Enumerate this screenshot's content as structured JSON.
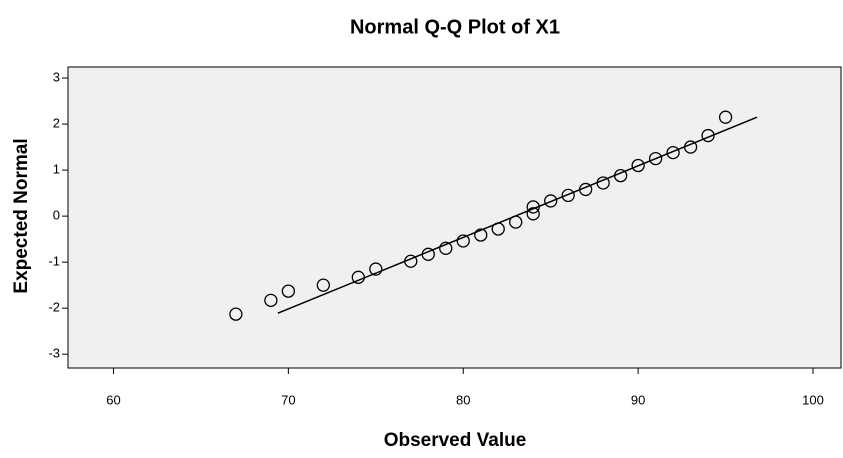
{
  "chart_data": {
    "type": "scatter",
    "title": "Normal Q-Q Plot of X1",
    "x_label": "Observed Value",
    "y_label": "Expected Normal",
    "x": [
      67,
      69,
      70,
      72,
      74,
      75,
      77,
      78,
      79,
      80,
      81,
      82,
      83,
      84,
      84,
      85,
      86,
      87,
      88,
      89,
      90,
      91,
      92,
      93,
      94,
      95
    ],
    "values": [
      -2.13,
      -1.83,
      -1.63,
      -1.5,
      -1.33,
      -1.15,
      -0.98,
      -0.83,
      -0.7,
      -0.54,
      -0.41,
      -0.28,
      -0.13,
      0.05,
      0.2,
      0.33,
      0.45,
      0.58,
      0.72,
      0.88,
      1.1,
      1.25,
      1.38,
      1.5,
      1.75,
      2.15
    ],
    "color": "#000000",
    "reference_line": {
      "x": [
        69.4,
        96.8
      ],
      "y": [
        -2.11,
        2.15
      ]
    },
    "xlim": [
      57.4,
      101.6
    ],
    "xticks": [
      60,
      70,
      80,
      90,
      100
    ],
    "ylim": [
      -3.3,
      3.24
    ],
    "yticks": [
      -3,
      -2,
      -1,
      0,
      1,
      2,
      3
    ]
  }
}
